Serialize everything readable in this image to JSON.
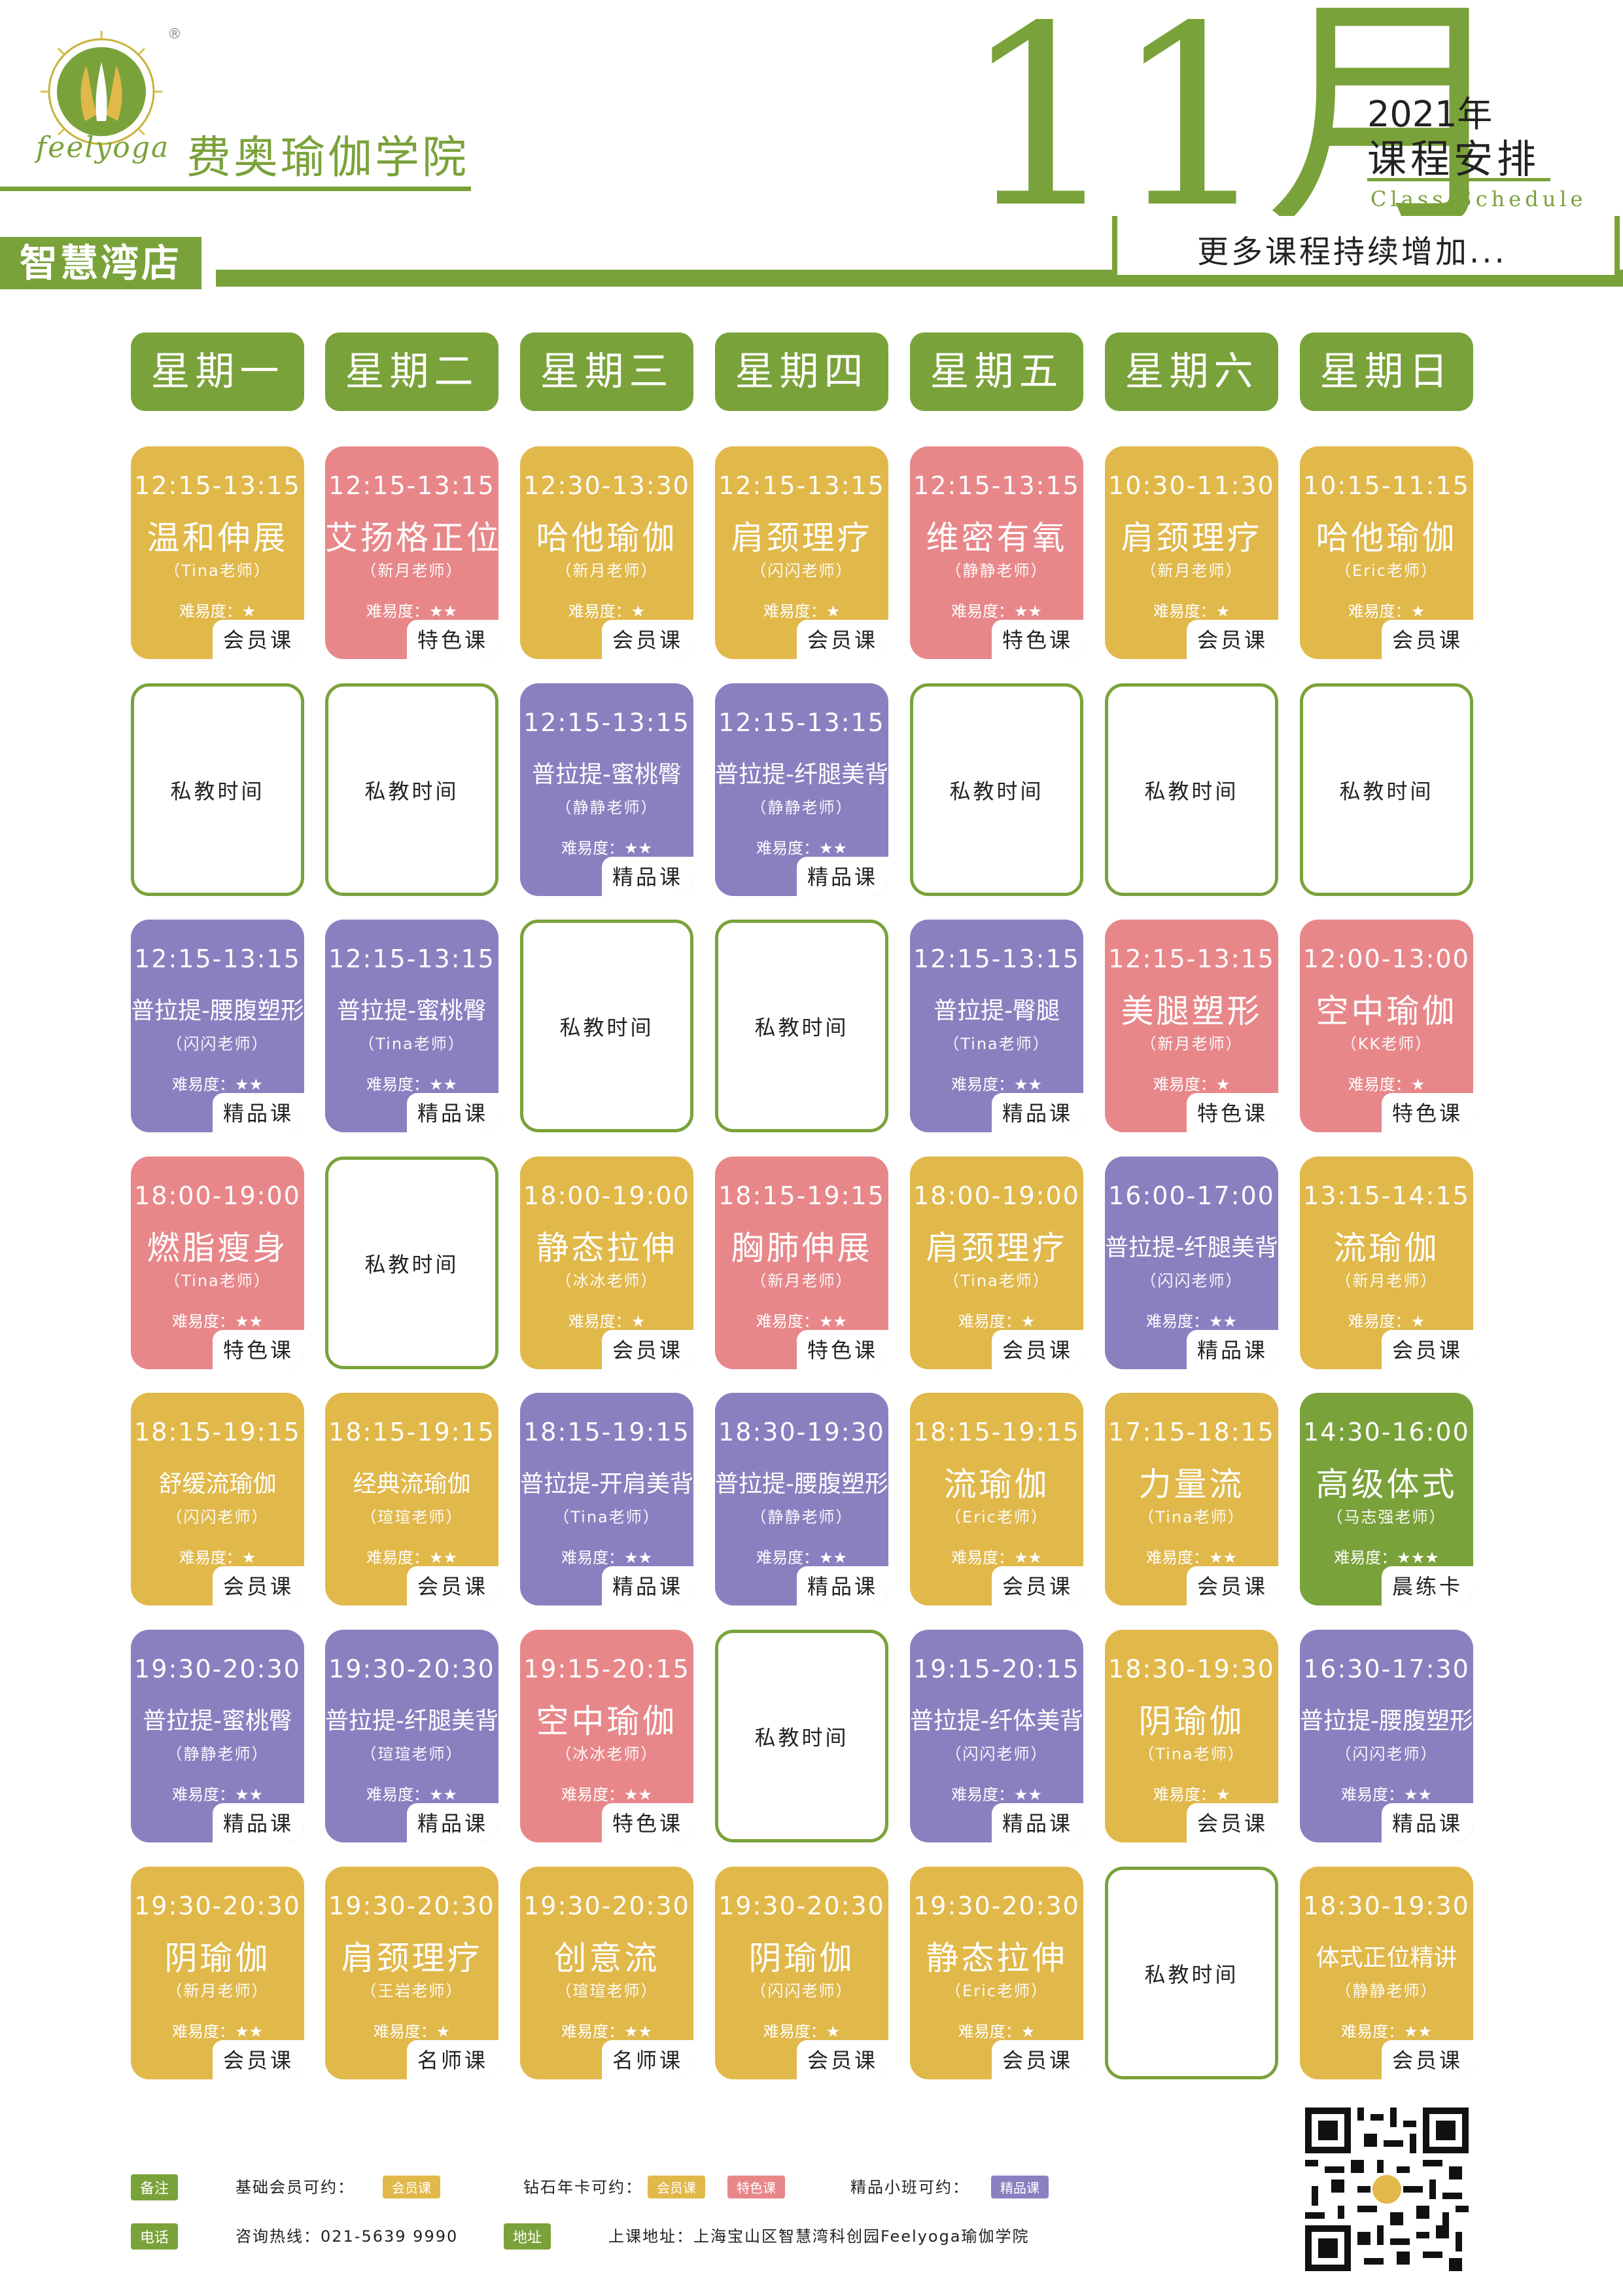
{
  "header": {
    "logo_text": "feelyoga",
    "registered": "®",
    "school_name": "费奥瑜伽学院",
    "month": "11月",
    "year": "2021年",
    "schedule_cn": "课程安排",
    "schedule_en": "Class Schedule",
    "store": "智慧湾店",
    "more": "更多课程持续增加..."
  },
  "days": [
    "星期一",
    "星期二",
    "星期三",
    "星期四",
    "星期五",
    "星期六",
    "星期日"
  ],
  "private_label": "私教时间",
  "colors": {
    "green": "#7aa23a",
    "yellow": "#e1b84a",
    "pink": "#e8878a",
    "purple": "#8a80c0"
  },
  "grid": [
    [
      {
        "type": "yellow",
        "time": "12:15-13:15",
        "title": "温和伸展",
        "teacher": "（Tina老师）",
        "diff": "难易度：★",
        "tag": "会员课"
      },
      {
        "type": "pink",
        "time": "12:15-13:15",
        "title": "艾扬格正位",
        "teacher": "（新月老师）",
        "diff": "难易度：★★",
        "tag": "特色课"
      },
      {
        "type": "yellow",
        "time": "12:30-13:30",
        "title": "哈他瑜伽",
        "teacher": "（新月老师）",
        "diff": "难易度：★",
        "tag": "会员课"
      },
      {
        "type": "yellow",
        "time": "12:15-13:15",
        "title": "肩颈理疗",
        "teacher": "（闪闪老师）",
        "diff": "难易度：★",
        "tag": "会员课"
      },
      {
        "type": "pink",
        "time": "12:15-13:15",
        "title": "维密有氧",
        "teacher": "（静静老师）",
        "diff": "难易度：★★",
        "tag": "特色课"
      },
      {
        "type": "yellow",
        "time": "10:30-11:30",
        "title": "肩颈理疗",
        "teacher": "（新月老师）",
        "diff": "难易度：★",
        "tag": "会员课"
      },
      {
        "type": "yellow",
        "time": "10:15-11:15",
        "title": "哈他瑜伽",
        "teacher": "（Eric老师）",
        "diff": "难易度：★",
        "tag": "会员课"
      }
    ],
    [
      {
        "type": "empty"
      },
      {
        "type": "empty"
      },
      {
        "type": "purple",
        "time": "12:15-13:15",
        "title": "普拉提-蜜桃臀",
        "teacher": "（静静老师）",
        "diff": "难易度：★★",
        "tag": "精品课",
        "small": true
      },
      {
        "type": "purple",
        "time": "12:15-13:15",
        "title": "普拉提-纤腿美背",
        "teacher": "（静静老师）",
        "diff": "难易度：★★",
        "tag": "精品课",
        "small": true
      },
      {
        "type": "empty"
      },
      {
        "type": "empty"
      },
      {
        "type": "empty"
      }
    ],
    [
      {
        "type": "purple",
        "time": "12:15-13:15",
        "title": "普拉提-腰腹塑形",
        "teacher": "（闪闪老师）",
        "diff": "难易度：★★",
        "tag": "精品课",
        "small": true
      },
      {
        "type": "purple",
        "time": "12:15-13:15",
        "title": "普拉提-蜜桃臀",
        "teacher": "（Tina老师）",
        "diff": "难易度：★★",
        "tag": "精品课",
        "small": true
      },
      {
        "type": "empty"
      },
      {
        "type": "empty"
      },
      {
        "type": "purple",
        "time": "12:15-13:15",
        "title": "普拉提-臀腿",
        "teacher": "（Tina老师）",
        "diff": "难易度：★★",
        "tag": "精品课",
        "small": true
      },
      {
        "type": "pink",
        "time": "12:15-13:15",
        "title": "美腿塑形",
        "teacher": "（新月老师）",
        "diff": "难易度：★",
        "tag": "特色课"
      },
      {
        "type": "pink",
        "time": "12:00-13:00",
        "title": "空中瑜伽",
        "teacher": "（KK老师）",
        "diff": "难易度：★",
        "tag": "特色课"
      }
    ],
    [
      {
        "type": "pink",
        "time": "18:00-19:00",
        "title": "燃脂瘦身",
        "teacher": "（Tina老师）",
        "diff": "难易度：★★",
        "tag": "特色课"
      },
      {
        "type": "empty"
      },
      {
        "type": "yellow",
        "time": "18:00-19:00",
        "title": "静态拉伸",
        "teacher": "（冰冰老师）",
        "diff": "难易度：★",
        "tag": "会员课"
      },
      {
        "type": "pink",
        "time": "18:15-19:15",
        "title": "胸肺伸展",
        "teacher": "（新月老师）",
        "diff": "难易度：★★",
        "tag": "特色课"
      },
      {
        "type": "yellow",
        "time": "18:00-19:00",
        "title": "肩颈理疗",
        "teacher": "（Tina老师）",
        "diff": "难易度：★",
        "tag": "会员课"
      },
      {
        "type": "purple",
        "time": "16:00-17:00",
        "title": "普拉提-纤腿美背",
        "teacher": "（闪闪老师）",
        "diff": "难易度：★★",
        "tag": "精品课",
        "small": true
      },
      {
        "type": "yellow",
        "time": "13:15-14:15",
        "title": "流瑜伽",
        "teacher": "（新月老师）",
        "diff": "难易度：★",
        "tag": "会员课"
      }
    ],
    [
      {
        "type": "yellow",
        "time": "18:15-19:15",
        "title": "舒缓流瑜伽",
        "teacher": "（闪闪老师）",
        "diff": "难易度：★",
        "tag": "会员课",
        "small": true
      },
      {
        "type": "yellow",
        "time": "18:15-19:15",
        "title": "经典流瑜伽",
        "teacher": "（瑄瑄老师）",
        "diff": "难易度：★★",
        "tag": "会员课",
        "small": true
      },
      {
        "type": "purple",
        "time": "18:15-19:15",
        "title": "普拉提-开肩美背",
        "teacher": "（Tina老师）",
        "diff": "难易度：★★",
        "tag": "精品课",
        "small": true
      },
      {
        "type": "purple",
        "time": "18:30-19:30",
        "title": "普拉提-腰腹塑形",
        "teacher": "（静静老师）",
        "diff": "难易度：★★",
        "tag": "精品课",
        "small": true
      },
      {
        "type": "yellow",
        "time": "18:15-19:15",
        "title": "流瑜伽",
        "teacher": "（Eric老师）",
        "diff": "难易度：★★",
        "tag": "会员课"
      },
      {
        "type": "yellow",
        "time": "17:15-18:15",
        "title": "力量流",
        "teacher": "（Tina老师）",
        "diff": "难易度：★★",
        "tag": "会员课"
      },
      {
        "type": "green",
        "time": "14:30-16:00",
        "title": "高级体式",
        "teacher": "（马志强老师）",
        "diff": "难易度：★★★",
        "tag": "晨练卡"
      }
    ],
    [
      {
        "type": "purple",
        "time": "19:30-20:30",
        "title": "普拉提-蜜桃臀",
        "teacher": "（静静老师）",
        "diff": "难易度：★★",
        "tag": "精品课",
        "small": true
      },
      {
        "type": "purple",
        "time": "19:30-20:30",
        "title": "普拉提-纤腿美背",
        "teacher": "（瑄瑄老师）",
        "diff": "难易度：★★",
        "tag": "精品课",
        "small": true
      },
      {
        "type": "pink",
        "time": "19:15-20:15",
        "title": "空中瑜伽",
        "teacher": "（冰冰老师）",
        "diff": "难易度：★★",
        "tag": "特色课"
      },
      {
        "type": "empty"
      },
      {
        "type": "purple",
        "time": "19:15-20:15",
        "title": "普拉提-纤体美背",
        "teacher": "（闪闪老师）",
        "diff": "难易度：★★",
        "tag": "精品课",
        "small": true
      },
      {
        "type": "yellow",
        "time": "18:30-19:30",
        "title": "阴瑜伽",
        "teacher": "（Tina老师）",
        "diff": "难易度：★",
        "tag": "会员课"
      },
      {
        "type": "purple",
        "time": "16:30-17:30",
        "title": "普拉提-腰腹塑形",
        "teacher": "（闪闪老师）",
        "diff": "难易度：★★",
        "tag": "精品课",
        "small": true
      }
    ],
    [
      {
        "type": "yellow",
        "time": "19:30-20:30",
        "title": "阴瑜伽",
        "teacher": "（新月老师）",
        "diff": "难易度：★★",
        "tag": "会员课"
      },
      {
        "type": "yellow",
        "time": "19:30-20:30",
        "title": "肩颈理疗",
        "teacher": "（王岩老师）",
        "diff": "难易度：★",
        "tag": "名师课"
      },
      {
        "type": "yellow",
        "time": "19:30-20:30",
        "title": "创意流",
        "teacher": "（瑄瑄老师）",
        "diff": "难易度：★★",
        "tag": "名师课"
      },
      {
        "type": "yellow",
        "time": "19:30-20:30",
        "title": "阴瑜伽",
        "teacher": "（闪闪老师）",
        "diff": "难易度：★",
        "tag": "会员课"
      },
      {
        "type": "yellow",
        "time": "19:30-20:30",
        "title": "静态拉伸",
        "teacher": "（Eric老师）",
        "diff": "难易度：★",
        "tag": "会员课"
      },
      {
        "type": "empty"
      },
      {
        "type": "yellow",
        "time": "18:30-19:30",
        "title": "体式正位精讲",
        "teacher": "（静静老师）",
        "diff": "难易度：★★",
        "tag": "会员课",
        "small": true
      }
    ]
  ],
  "footer": {
    "note_badge": "备注",
    "basic": "基础会员可约：",
    "diamond": "钻石年卡可约：",
    "boutique": "精品小班可约：",
    "pill_member": "会员课",
    "pill_special": "特色课",
    "pill_boutique": "精品课",
    "phone_badge": "电话",
    "phone": "咨询热线：021-5639 9990",
    "address_badge": "地址",
    "address": "上课地址：上海宝山区智慧湾科创园Feelyoga瑜伽学院"
  }
}
